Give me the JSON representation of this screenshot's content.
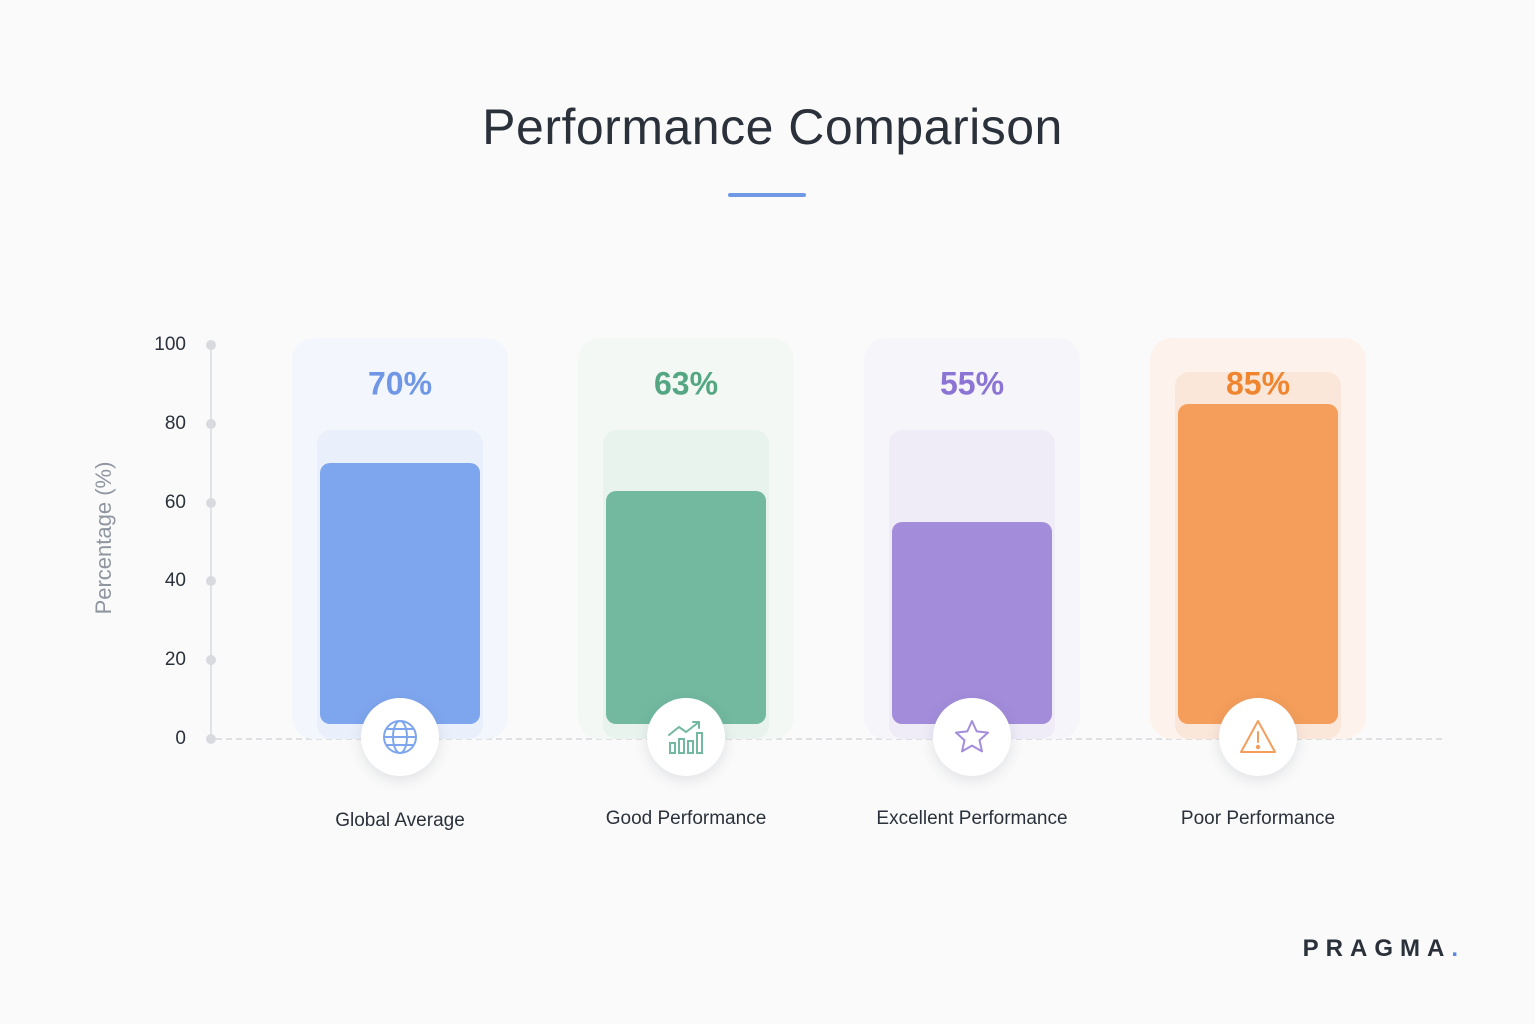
{
  "title": "Performance Comparison",
  "brand": {
    "name": "PRAGMA",
    "dot": "."
  },
  "colors": {
    "title_rule": "#6f99e3",
    "series": [
      "#7ea6ee",
      "#72b9a0",
      "#a38ddb",
      "#f59e5b"
    ],
    "value_text": [
      "#6f97e6",
      "#55a783",
      "#8b74d4",
      "#f0852f"
    ],
    "card_bg": [
      "#f3f6fd",
      "#f3f8f5",
      "#f6f5fa",
      "#fdf3ec"
    ],
    "track_bg": [
      "#eaf0fb",
      "#e9f3ee",
      "#efecf8",
      "#fbe7da"
    ]
  },
  "chart_data": {
    "type": "bar",
    "title": "Performance Comparison",
    "ylabel": "Percentage (%)",
    "xlabel": "",
    "ylim": [
      0,
      100
    ],
    "yticks": [
      0,
      20,
      40,
      60,
      80,
      100
    ],
    "grid": false,
    "categories": [
      "Global Average",
      "Good Performance",
      "Excellent Performance",
      "Poor Performance"
    ],
    "values": [
      70,
      63,
      55,
      85
    ],
    "value_labels": [
      "70%",
      "63%",
      "55%",
      "85%"
    ],
    "icons": [
      "globe-icon",
      "trend-up-icon",
      "star-icon",
      "warning-icon"
    ]
  }
}
